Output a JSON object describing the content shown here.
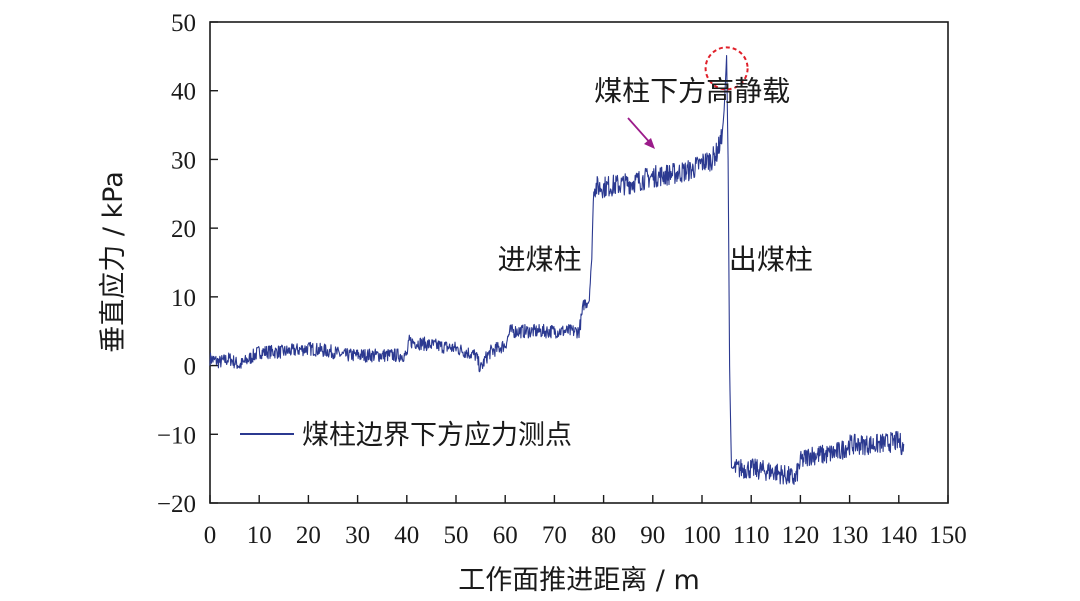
{
  "chart_data": {
    "type": "line",
    "xlabel": "工作面推进距离 / m",
    "ylabel": "垂直应力 / kPa",
    "xlim": [
      0,
      150
    ],
    "ylim": [
      -20,
      50
    ],
    "x_ticks": [
      0,
      10,
      20,
      30,
      40,
      50,
      60,
      70,
      80,
      90,
      100,
      110,
      120,
      130,
      140,
      150
    ],
    "y_ticks": [
      -20,
      -10,
      0,
      10,
      20,
      30,
      40,
      50
    ],
    "x_tick_labels": [
      "0",
      "10",
      "20",
      "30",
      "40",
      "50",
      "60",
      "70",
      "80",
      "90",
      "100",
      "110",
      "120",
      "130",
      "140",
      "150"
    ],
    "y_tick_labels": [
      "−20",
      "−10",
      "0",
      "10",
      "20",
      "30",
      "40",
      "50"
    ],
    "grid": false,
    "legend_position": "bottom-left",
    "colors": {
      "series": "#2b3990",
      "arrow": "#9b1b8a",
      "circle": "#e0202a",
      "axis": "#1a1a1a"
    },
    "series": [
      {
        "name": "煤柱边界下方应力测点",
        "x": [
          0,
          2,
          4,
          6,
          8,
          10,
          15,
          20,
          25,
          27,
          30,
          35,
          40,
          40.5,
          45,
          50,
          54,
          55,
          56,
          57,
          60,
          61,
          65,
          70,
          75,
          76,
          77,
          77.5,
          78,
          79,
          80,
          85,
          90,
          95,
          98,
          100,
          102,
          103,
          104,
          104.5,
          105,
          105.3,
          105.6,
          106,
          108,
          110,
          115,
          119,
          120,
          122,
          125,
          128,
          130,
          135,
          140,
          141
        ],
        "y": [
          1,
          0.5,
          1,
          0,
          1,
          2,
          2,
          2.5,
          2,
          1.5,
          1.5,
          1.5,
          1.5,
          3.5,
          3,
          2.5,
          1.5,
          -0.5,
          1,
          2,
          3,
          5,
          5,
          5,
          5,
          9,
          9.5,
          14,
          26,
          26,
          26,
          26.5,
          27.5,
          28,
          28.5,
          29.5,
          30,
          31,
          33,
          37,
          45,
          30,
          0,
          -15,
          -15,
          -15,
          -15.5,
          -16.5,
          -14,
          -13,
          -13,
          -12.5,
          -11.5,
          -11.5,
          -11,
          -12
        ]
      }
    ],
    "annotations": [
      {
        "text": "煤柱下方高静载",
        "x": 98,
        "y": 40
      },
      {
        "text": "进煤柱",
        "x": 67,
        "y": 15.5
      },
      {
        "text": "出煤柱",
        "x": 114,
        "y": 15.5
      }
    ],
    "highlight": {
      "label": "peak",
      "x": 105,
      "y": 45
    }
  }
}
